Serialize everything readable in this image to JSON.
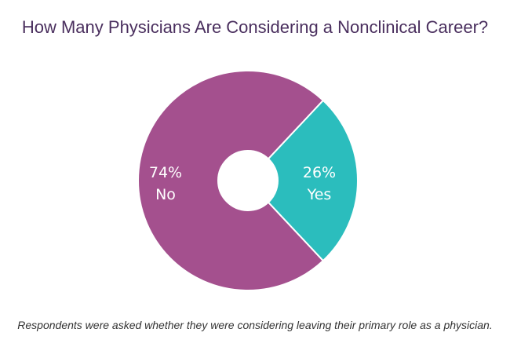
{
  "chart_data": {
    "type": "pie",
    "title": "How Many Physicians Are Considering a Nonclinical Career?",
    "categories": [
      "No",
      "Yes"
    ],
    "values": [
      74,
      26
    ],
    "value_labels": [
      "74%",
      "26%"
    ],
    "colors": [
      "#a4508e",
      "#2bbdbd"
    ],
    "footnote": "Respondents were asked whether they were considering leaving their primary role as a physician."
  }
}
